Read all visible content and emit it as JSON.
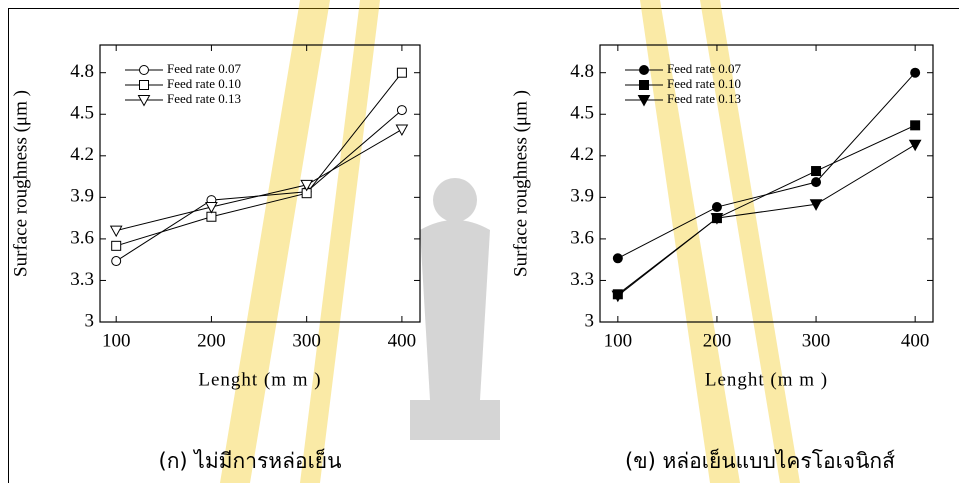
{
  "chart_data": [
    {
      "type": "line",
      "filled": false,
      "x": [
        100,
        200,
        300,
        400
      ],
      "series": [
        {
          "name": "Feed rate 0.07",
          "color": "#000000",
          "marker": "circle",
          "values": [
            3.44,
            3.88,
            3.94,
            4.53
          ]
        },
        {
          "name": "Feed rate 0.10",
          "color": "#000000",
          "marker": "square",
          "values": [
            3.55,
            3.76,
            3.93,
            4.8
          ]
        },
        {
          "name": "Feed rate 0.13",
          "color": "#000000",
          "marker": "triangle-down",
          "values": [
            3.66,
            3.83,
            3.99,
            4.39
          ]
        }
      ],
      "xlim": [
        83,
        419
      ],
      "xticks": [
        100,
        200,
        300,
        400
      ],
      "ylim": [
        3,
        5
      ],
      "yticks": [
        3,
        3.3,
        3.6,
        3.9,
        4.2,
        4.5,
        4.8
      ],
      "x_label": "Lenght (m m )",
      "y_label": "Surface roughness (μm )",
      "caption": "(ก) ไม่มีการหล่อเย็น",
      "legend": "top-left"
    },
    {
      "type": "line",
      "filled": true,
      "x": [
        100,
        200,
        300,
        400
      ],
      "series": [
        {
          "name": "Feed rate 0.07",
          "color": "#000000",
          "marker": "circle",
          "values": [
            3.46,
            3.83,
            4.01,
            4.8
          ]
        },
        {
          "name": "Feed rate 0.10",
          "color": "#000000",
          "marker": "square",
          "values": [
            3.2,
            3.75,
            4.09,
            4.42
          ]
        },
        {
          "name": "Feed rate 0.13",
          "color": "#000000",
          "marker": "triangle-down",
          "values": [
            3.19,
            3.75,
            3.85,
            4.28
          ]
        }
      ],
      "xlim": [
        82,
        418
      ],
      "xticks": [
        100,
        200,
        300,
        400
      ],
      "ylim": [
        3,
        5
      ],
      "yticks": [
        3,
        3.3,
        3.6,
        3.9,
        4.2,
        4.5,
        4.8
      ],
      "x_label": "Lenght (m m )",
      "y_label": "Surface roughness (μm )",
      "caption": "(ข) หล่อเย็นแบบไครโอเจนิกส์",
      "legend": "top-left"
    }
  ]
}
